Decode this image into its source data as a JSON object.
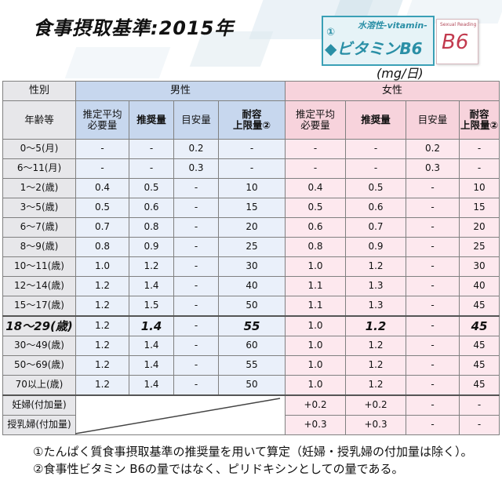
{
  "title": "食事摂取基準:2015年",
  "logo": {
    "top_text": "水溶性-vitamin-",
    "number": "①",
    "main_text": "◆ビタミンB6",
    "card_small": "Sexual Reading",
    "card_big": "B6"
  },
  "unit": "(mg/日)",
  "table": {
    "sex_label": "性別",
    "male_label": "男性",
    "female_label": "女性",
    "age_label": "年齢等",
    "col_headers": [
      "推定平均\n必要量",
      "推奨量",
      "目安量",
      "耐容\n上限量②"
    ],
    "rows": [
      {
        "age": "0～5(月)",
        "m": [
          "-",
          "-",
          "0.2",
          "-"
        ],
        "f": [
          "-",
          "-",
          "0.2",
          "-"
        ]
      },
      {
        "age": "6～11(月)",
        "m": [
          "-",
          "-",
          "0.3",
          "-"
        ],
        "f": [
          "-",
          "-",
          "0.3",
          "-"
        ]
      },
      {
        "age": "1～2(歳)",
        "m": [
          "0.4",
          "0.5",
          "-",
          "10"
        ],
        "f": [
          "0.4",
          "0.5",
          "-",
          "10"
        ]
      },
      {
        "age": "3～5(歳)",
        "m": [
          "0.5",
          "0.6",
          "-",
          "15"
        ],
        "f": [
          "0.5",
          "0.6",
          "-",
          "15"
        ]
      },
      {
        "age": "6～7(歳)",
        "m": [
          "0.7",
          "0.8",
          "-",
          "20"
        ],
        "f": [
          "0.6",
          "0.7",
          "-",
          "20"
        ]
      },
      {
        "age": "8～9(歳)",
        "m": [
          "0.8",
          "0.9",
          "-",
          "25"
        ],
        "f": [
          "0.8",
          "0.9",
          "-",
          "25"
        ]
      },
      {
        "age": "10～11(歳)",
        "m": [
          "1.0",
          "1.2",
          "-",
          "30"
        ],
        "f": [
          "1.0",
          "1.2",
          "-",
          "30"
        ]
      },
      {
        "age": "12～14(歳)",
        "m": [
          "1.2",
          "1.4",
          "-",
          "40"
        ],
        "f": [
          "1.1",
          "1.3",
          "-",
          "40"
        ]
      },
      {
        "age": "15～17(歳)",
        "m": [
          "1.2",
          "1.5",
          "-",
          "50"
        ],
        "f": [
          "1.1",
          "1.3",
          "-",
          "45"
        ]
      },
      {
        "age": "18～29(歳)",
        "m": [
          "1.2",
          "1.4",
          "-",
          "55"
        ],
        "f": [
          "1.0",
          "1.2",
          "-",
          "45"
        ]
      },
      {
        "age": "30～49(歳)",
        "m": [
          "1.2",
          "1.4",
          "-",
          "60"
        ],
        "f": [
          "1.0",
          "1.2",
          "-",
          "45"
        ]
      },
      {
        "age": "50～69(歳)",
        "m": [
          "1.2",
          "1.4",
          "-",
          "55"
        ],
        "f": [
          "1.0",
          "1.2",
          "-",
          "45"
        ]
      },
      {
        "age": "70以上(歳)",
        "m": [
          "1.2",
          "1.4",
          "-",
          "50"
        ],
        "f": [
          "1.0",
          "1.2",
          "-",
          "45"
        ]
      }
    ],
    "extra_rows": [
      {
        "age": "妊婦(付加量)",
        "f": [
          "+0.2",
          "+0.2",
          "-",
          "-"
        ]
      },
      {
        "age": "授乳婦(付加量)",
        "f": [
          "+0.3",
          "+0.3",
          "-",
          "-"
        ]
      }
    ]
  },
  "notes": [
    "①たんぱく質食事摂取基準の推奨量を用いて算定（妊婦・授乳婦の付加量は除く）。",
    "②食事性ビタミン B6の量ではなく、ピリドキシンとしての量である。"
  ],
  "colors": {
    "male_header": "#c7d7ee",
    "female_header": "#f7d3dc",
    "male_cell": "#eaf0fa",
    "female_cell": "#fde8ee",
    "accent": "#2a8fa6"
  }
}
